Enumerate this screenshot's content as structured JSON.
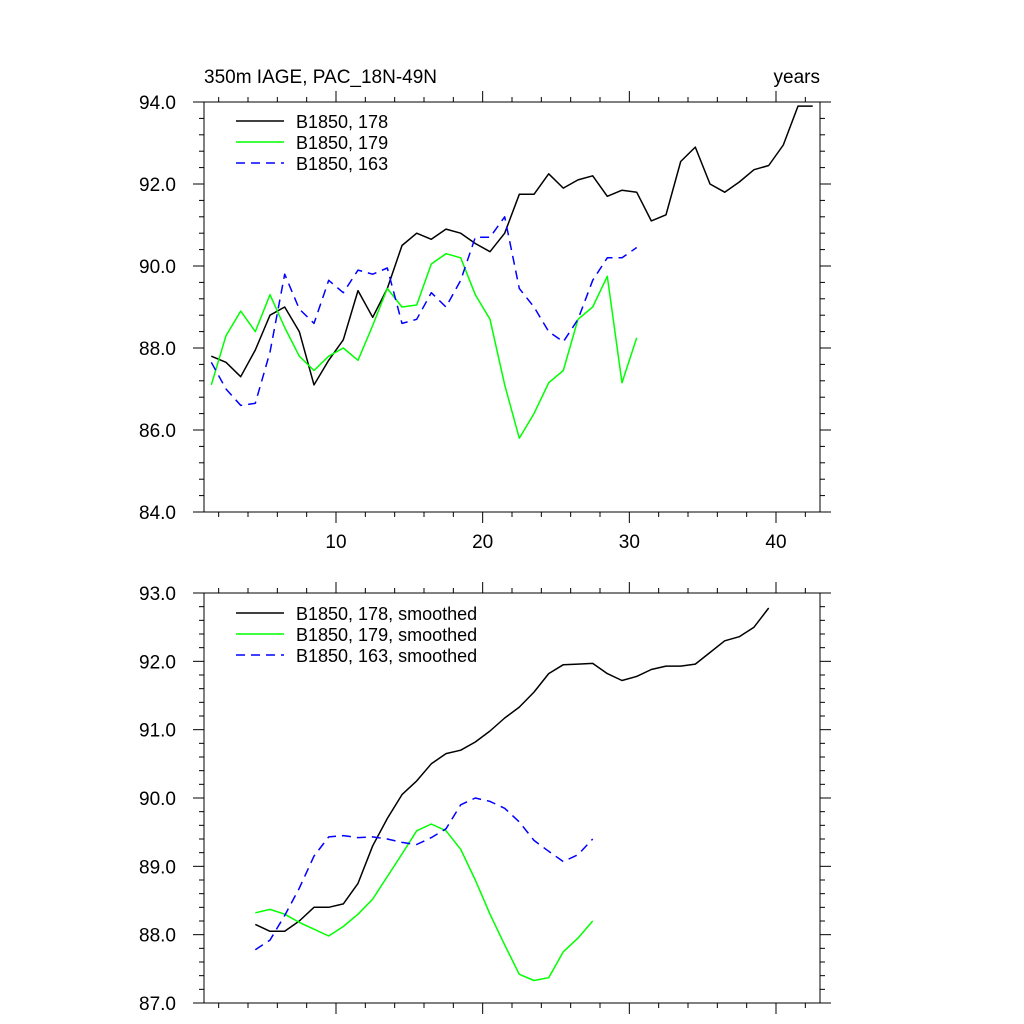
{
  "chart_data": [
    {
      "type": "line",
      "title_left": "350m IAGE, PAC_18N-49N",
      "title_right": "years",
      "xlim": [
        1,
        43
      ],
      "ylim": [
        84.0,
        94.0
      ],
      "xticks": [
        10,
        20,
        30,
        40
      ],
      "xtick_labels": [
        "10",
        "20",
        "30",
        "40"
      ],
      "yticks": [
        84.0,
        86.0,
        88.0,
        90.0,
        92.0,
        94.0
      ],
      "ytick_labels": [
        "84.0",
        "86.0",
        "88.0",
        "90.0",
        "92.0",
        "94.0"
      ],
      "series": [
        {
          "name": "B1850, 178",
          "color": "#000000",
          "dash": "solid",
          "x": [
            1.5,
            2.5,
            3.5,
            4.5,
            5.5,
            6.5,
            7.5,
            8.5,
            9.5,
            10.5,
            11.5,
            12.5,
            13.5,
            14.5,
            15.5,
            16.5,
            17.5,
            18.5,
            19.5,
            20.5,
            21.5,
            22.5,
            23.5,
            24.5,
            25.5,
            26.5,
            27.5,
            28.5,
            29.5,
            30.5,
            31.5,
            32.5,
            33.5,
            34.5,
            35.5,
            36.5,
            37.5,
            38.5,
            39.5,
            40.5,
            41.5,
            42.5
          ],
          "values": [
            87.8,
            87.65,
            87.3,
            87.95,
            88.8,
            89.0,
            88.4,
            87.1,
            87.7,
            88.2,
            89.4,
            88.75,
            89.45,
            90.5,
            90.8,
            90.65,
            90.9,
            90.8,
            90.55,
            90.35,
            90.8,
            91.75,
            91.75,
            92.25,
            91.9,
            92.1,
            92.2,
            91.7,
            91.85,
            91.8,
            91.1,
            91.25,
            92.55,
            92.9,
            92.0,
            91.8,
            92.05,
            92.35,
            92.45,
            92.95,
            93.9,
            93.9
          ]
        },
        {
          "name": "B1850, 179",
          "color": "#00ff00",
          "dash": "solid",
          "x": [
            1.5,
            2.5,
            3.5,
            4.5,
            5.5,
            6.5,
            7.5,
            8.5,
            9.5,
            10.5,
            11.5,
            12.5,
            13.5,
            14.5,
            15.5,
            16.5,
            17.5,
            18.5,
            19.5,
            20.5,
            21.5,
            22.5,
            23.5,
            24.5,
            25.5,
            26.5,
            27.5,
            28.5,
            29.5,
            30.5
          ],
          "values": [
            87.1,
            88.3,
            88.9,
            88.4,
            89.3,
            88.5,
            87.8,
            87.45,
            87.8,
            88.0,
            87.7,
            88.55,
            89.45,
            89.0,
            89.05,
            90.05,
            90.3,
            90.2,
            89.3,
            88.7,
            87.1,
            85.8,
            86.4,
            87.15,
            87.45,
            88.7,
            89.0,
            89.75,
            87.15,
            88.25
          ]
        },
        {
          "name": "B1850, 163",
          "color": "#0000ff",
          "dash": "dashed",
          "x": [
            1.5,
            2.5,
            3.5,
            4.5,
            5.5,
            6.5,
            7.5,
            8.5,
            9.5,
            10.5,
            11.5,
            12.5,
            13.5,
            14.5,
            15.5,
            16.5,
            17.5,
            18.5,
            19.5,
            20.5,
            21.5,
            22.5,
            23.5,
            24.5,
            25.5,
            26.5,
            27.5,
            28.5,
            29.5,
            30.5
          ],
          "values": [
            87.65,
            87.0,
            86.6,
            86.65,
            87.9,
            89.8,
            88.95,
            88.6,
            89.65,
            89.35,
            89.9,
            89.8,
            89.95,
            88.6,
            88.7,
            89.35,
            89.0,
            89.65,
            90.7,
            90.7,
            91.2,
            89.45,
            89.0,
            88.4,
            88.15,
            88.7,
            89.65,
            90.2,
            90.2,
            90.45
          ]
        }
      ]
    },
    {
      "type": "line",
      "xlim": [
        1,
        43
      ],
      "ylim": [
        87.0,
        93.0
      ],
      "xticks": [
        10,
        20,
        30,
        40
      ],
      "yticks": [
        87.0,
        88.0,
        89.0,
        90.0,
        91.0,
        92.0,
        93.0
      ],
      "ytick_labels": [
        "87.0",
        "88.0",
        "89.0",
        "90.0",
        "91.0",
        "92.0",
        "93.0"
      ],
      "series": [
        {
          "name": "B1850, 178, smoothed",
          "color": "#000000",
          "dash": "solid",
          "x": [
            4.5,
            5.5,
            6.5,
            7.5,
            8.5,
            9.5,
            10.5,
            11.5,
            12.5,
            13.5,
            14.5,
            15.5,
            16.5,
            17.5,
            18.5,
            19.5,
            20.5,
            21.5,
            22.5,
            23.5,
            24.5,
            25.5,
            26.5,
            27.5,
            28.5,
            29.5,
            30.5,
            31.5,
            32.5,
            33.5,
            34.5,
            35.5,
            36.5,
            37.5,
            38.5,
            39.5
          ],
          "values": [
            88.15,
            88.05,
            88.05,
            88.2,
            88.4,
            88.4,
            88.45,
            88.75,
            89.3,
            89.7,
            90.05,
            90.25,
            90.5,
            90.65,
            90.7,
            90.82,
            90.98,
            91.17,
            91.33,
            91.55,
            91.82,
            91.95,
            91.96,
            91.97,
            91.82,
            91.72,
            91.78,
            91.88,
            91.93,
            91.93,
            91.96,
            92.13,
            92.3,
            92.36,
            92.5,
            92.78
          ]
        },
        {
          "name": "B1850, 179, smoothed",
          "color": "#00ff00",
          "dash": "solid",
          "x": [
            4.5,
            5.5,
            6.5,
            7.5,
            8.5,
            9.5,
            10.5,
            11.5,
            12.5,
            13.5,
            14.5,
            15.5,
            16.5,
            17.5,
            18.5,
            19.5,
            20.5,
            21.5,
            22.5,
            23.5,
            24.5,
            25.5,
            26.5,
            27.5
          ],
          "values": [
            88.32,
            88.37,
            88.3,
            88.18,
            88.08,
            87.98,
            88.12,
            88.3,
            88.52,
            88.85,
            89.18,
            89.52,
            89.62,
            89.52,
            89.25,
            88.8,
            88.3,
            87.85,
            87.42,
            87.33,
            87.37,
            87.75,
            87.95,
            88.2
          ]
        },
        {
          "name": "B1850, 163, smoothed",
          "color": "#0000ff",
          "dash": "dashed",
          "x": [
            4.5,
            5.5,
            6.5,
            7.5,
            8.5,
            9.5,
            10.5,
            11.5,
            12.5,
            13.5,
            14.5,
            15.5,
            16.5,
            17.5,
            18.5,
            19.5,
            20.5,
            21.5,
            22.5,
            23.5,
            24.5,
            25.5,
            26.5,
            27.5
          ],
          "values": [
            87.78,
            87.92,
            88.28,
            88.68,
            89.15,
            89.43,
            89.45,
            89.42,
            89.43,
            89.4,
            89.35,
            89.32,
            89.42,
            89.55,
            89.9,
            90.0,
            89.95,
            89.85,
            89.65,
            89.38,
            89.22,
            89.07,
            89.17,
            89.4
          ]
        }
      ]
    }
  ]
}
